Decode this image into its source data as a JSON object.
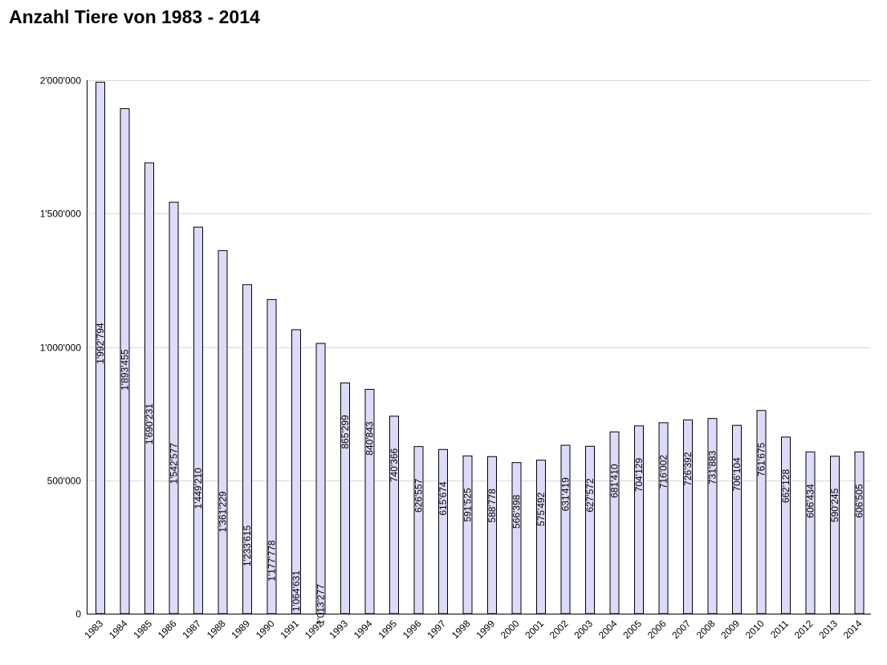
{
  "title": "Anzahl Tiere von 1983 - 2014",
  "colors": {
    "bar_fill": "#dcdcfa",
    "bar_stroke": "#000000",
    "grid": "#d8d8d8",
    "axis": "#000000",
    "text": "#000000"
  },
  "chart_data": {
    "type": "bar",
    "title": "Anzahl Tiere von 1983 - 2014",
    "xlabel": "",
    "ylabel": "",
    "ylim": [
      0,
      2000000
    ],
    "grid": true,
    "yticks": [
      {
        "value": 0,
        "label": "0"
      },
      {
        "value": 500000,
        "label": "500'000"
      },
      {
        "value": 1000000,
        "label": "1'000'000"
      },
      {
        "value": 1500000,
        "label": "1'500'000"
      },
      {
        "value": 2000000,
        "label": "2'000'000"
      }
    ],
    "categories": [
      "1983",
      "1984",
      "1985",
      "1986",
      "1987",
      "1988",
      "1989",
      "1990",
      "1991",
      "1992",
      "1993",
      "1994",
      "1995",
      "1996",
      "1997",
      "1998",
      "1999",
      "2000",
      "2001",
      "2002",
      "2003",
      "2004",
      "2005",
      "2006",
      "2007",
      "2008",
      "2009",
      "2010",
      "2011",
      "2012",
      "2013",
      "2014"
    ],
    "values": [
      1992794,
      1893455,
      1690231,
      1542577,
      1449210,
      1361229,
      1233615,
      1177778,
      1064631,
      1013277,
      865299,
      840843,
      740366,
      626557,
      615674,
      591525,
      588778,
      566398,
      575492,
      631419,
      627572,
      681410,
      704129,
      716002,
      726392,
      731883,
      706104,
      761675,
      662128,
      606434,
      590245,
      606505
    ],
    "value_labels": [
      "1'992'794",
      "1'893'455",
      "1'690'231",
      "1'542'577",
      "1'449'210",
      "1'361'229",
      "1'233'615",
      "1'177'778",
      "1'064'631",
      "1'013'277",
      "865'299",
      "840'843",
      "740'366",
      "626'557",
      "615'674",
      "591'525",
      "588'778",
      "566'398",
      "575'492",
      "631'419",
      "627'572",
      "681'410",
      "704'129",
      "716'002",
      "726'392",
      "731'883",
      "706'104",
      "761'675",
      "662'128",
      "606'434",
      "590'245",
      "606'505"
    ]
  }
}
